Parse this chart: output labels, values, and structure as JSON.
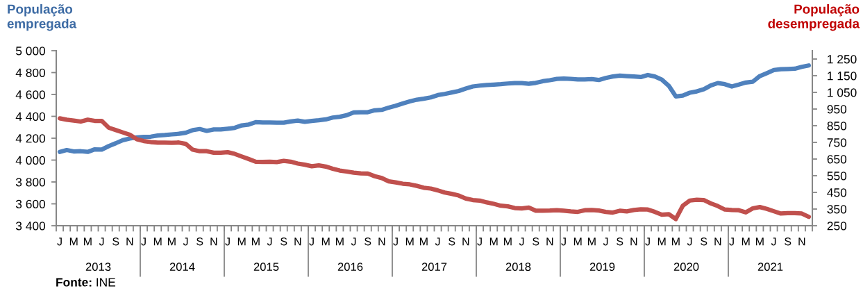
{
  "chart_data": {
    "type": "line",
    "ylabel": "População\nempregada",
    "y2label": "População\ndesempregada",
    "annotations": [
      "Fonte: INE"
    ],
    "categories": [
      "J",
      null,
      "M",
      null,
      "M",
      null,
      "J",
      null,
      "S",
      null,
      "N",
      null,
      "J",
      null,
      "M",
      null,
      "M",
      null,
      "J",
      null,
      "S",
      null,
      "N",
      null,
      "J",
      null,
      "M",
      null,
      "M",
      null,
      "J",
      null,
      "S",
      null,
      "N",
      null,
      "J",
      null,
      "M",
      null,
      "M",
      null,
      "J",
      null,
      "S",
      null,
      "N",
      null,
      "J",
      null,
      "M",
      null,
      "M",
      null,
      "J",
      null,
      "S",
      null,
      "N",
      null,
      "J",
      null,
      "M",
      null,
      "M",
      null,
      "J",
      null,
      "S",
      null,
      "N",
      null,
      "J",
      null,
      "M",
      null,
      "M",
      null,
      "J",
      null,
      "S",
      null,
      "N",
      null,
      "J",
      null,
      "M",
      null,
      "M",
      null,
      "J",
      null,
      "S",
      null,
      "N",
      null,
      "J",
      null,
      "M",
      null,
      "M",
      null,
      "J",
      null,
      "S",
      null,
      "N",
      null
    ],
    "x2lim": [
      "2013-01",
      "2022-01"
    ],
    "x2ticks": [
      {
        "value": "2013-07",
        "label": "2013"
      },
      {
        "value": "2014-01",
        "label": null
      },
      {
        "value": "2014-07",
        "label": "2014"
      },
      {
        "value": "2015-01",
        "label": null
      },
      {
        "value": "2015-07",
        "label": "2015"
      },
      {
        "value": "2016-01",
        "label": null
      },
      {
        "value": "2016-07",
        "label": "2016"
      },
      {
        "value": "2017-01",
        "label": null
      },
      {
        "value": "2017-07",
        "label": "2017"
      },
      {
        "value": "2018-01",
        "label": null
      },
      {
        "value": "2018-07",
        "label": "2018"
      },
      {
        "value": "2019-01",
        "label": null
      },
      {
        "value": "2019-07",
        "label": "2019"
      },
      {
        "value": "2020-01",
        "label": null
      },
      {
        "value": "2020-07",
        "label": "2020"
      },
      {
        "value": "2021-01",
        "label": null
      },
      {
        "value": "2021-07",
        "label": "2021"
      }
    ],
    "ylim": [
      3400,
      5000
    ],
    "yticks": [
      {
        "value": 3400,
        "label": "3 400"
      },
      {
        "value": 3600,
        "label": "3 600"
      },
      {
        "value": 3800,
        "label": "3 800"
      },
      {
        "value": 4000,
        "label": "4 000"
      },
      {
        "value": 4200,
        "label": "4 200"
      },
      {
        "value": 4400,
        "label": "4 400"
      },
      {
        "value": 4600,
        "label": "4 600"
      },
      {
        "value": 4800,
        "label": "4 800"
      },
      {
        "value": 5000,
        "label": "5 000"
      }
    ],
    "y2lim": [
      250,
      1300
    ],
    "y2ticks": [
      250,
      350,
      450,
      550,
      650,
      750,
      850,
      950,
      {
        "value": 1050,
        "label": "1 050"
      },
      {
        "value": 1150,
        "label": "1 150"
      },
      {
        "value": 1250,
        "label": "1 250"
      }
    ],
    "series": [
      {
        "color": "#4f81bd",
        "values": [
          4075,
          4092,
          4079,
          4081,
          4075,
          4098,
          4096,
          4128,
          4154,
          4182,
          4197,
          4207,
          4212,
          4214,
          4225,
          4229,
          4235,
          4240,
          4250,
          4274,
          4284,
          4267,
          4280,
          4280,
          4287,
          4295,
          4317,
          4325,
          4347,
          4344,
          4344,
          4342,
          4342,
          4353,
          4361,
          4350,
          4358,
          4364,
          4372,
          4389,
          4396,
          4410,
          4436,
          4438,
          4438,
          4455,
          4459,
          4480,
          4497,
          4518,
          4537,
          4552,
          4561,
          4573,
          4594,
          4605,
          4618,
          4632,
          4654,
          4673,
          4681,
          4687,
          4690,
          4694,
          4700,
          4704,
          4704,
          4698,
          4706,
          4721,
          4730,
          4742,
          4745,
          4742,
          4738,
          4738,
          4740,
          4732,
          4751,
          4764,
          4772,
          4768,
          4764,
          4759,
          4778,
          4764,
          4736,
          4679,
          4582,
          4590,
          4616,
          4628,
          4647,
          4683,
          4704,
          4694,
          4673,
          4690,
          4709,
          4717,
          4768,
          4795,
          4823,
          4831,
          4833,
          4835,
          4852,
          4865
        ]
      },
      {
        "color": "#c0504d",
        "axis": "y2",
        "values": [
          894,
          886,
          881,
          875,
          886,
          879,
          879,
          838,
          824,
          810,
          796,
          769,
          758,
          752,
          748,
          748,
          747,
          749,
          741,
          706,
          697,
          697,
          688,
          688,
          691,
          681,
          665,
          650,
          634,
          633,
          634,
          632,
          639,
          634,
          623,
          616,
          607,
          612,
          605,
          592,
          581,
          575,
          568,
          564,
          563,
          547,
          536,
          516,
          510,
          502,
          498,
          489,
          478,
          473,
          462,
          449,
          441,
          431,
          413,
          404,
          401,
          390,
          381,
          370,
          366,
          356,
          354,
          359,
          340,
          340,
          341,
          343,
          340,
          336,
          333,
          343,
          344,
          341,
          333,
          329,
          340,
          336,
          344,
          348,
          347,
          333,
          316,
          319,
          290,
          370,
          401,
          406,
          404,
          384,
          368,
          347,
          344,
          343,
          330,
          354,
          362,
          351,
          337,
          323,
          326,
          326,
          323,
          303
        ]
      }
    ]
  }
}
